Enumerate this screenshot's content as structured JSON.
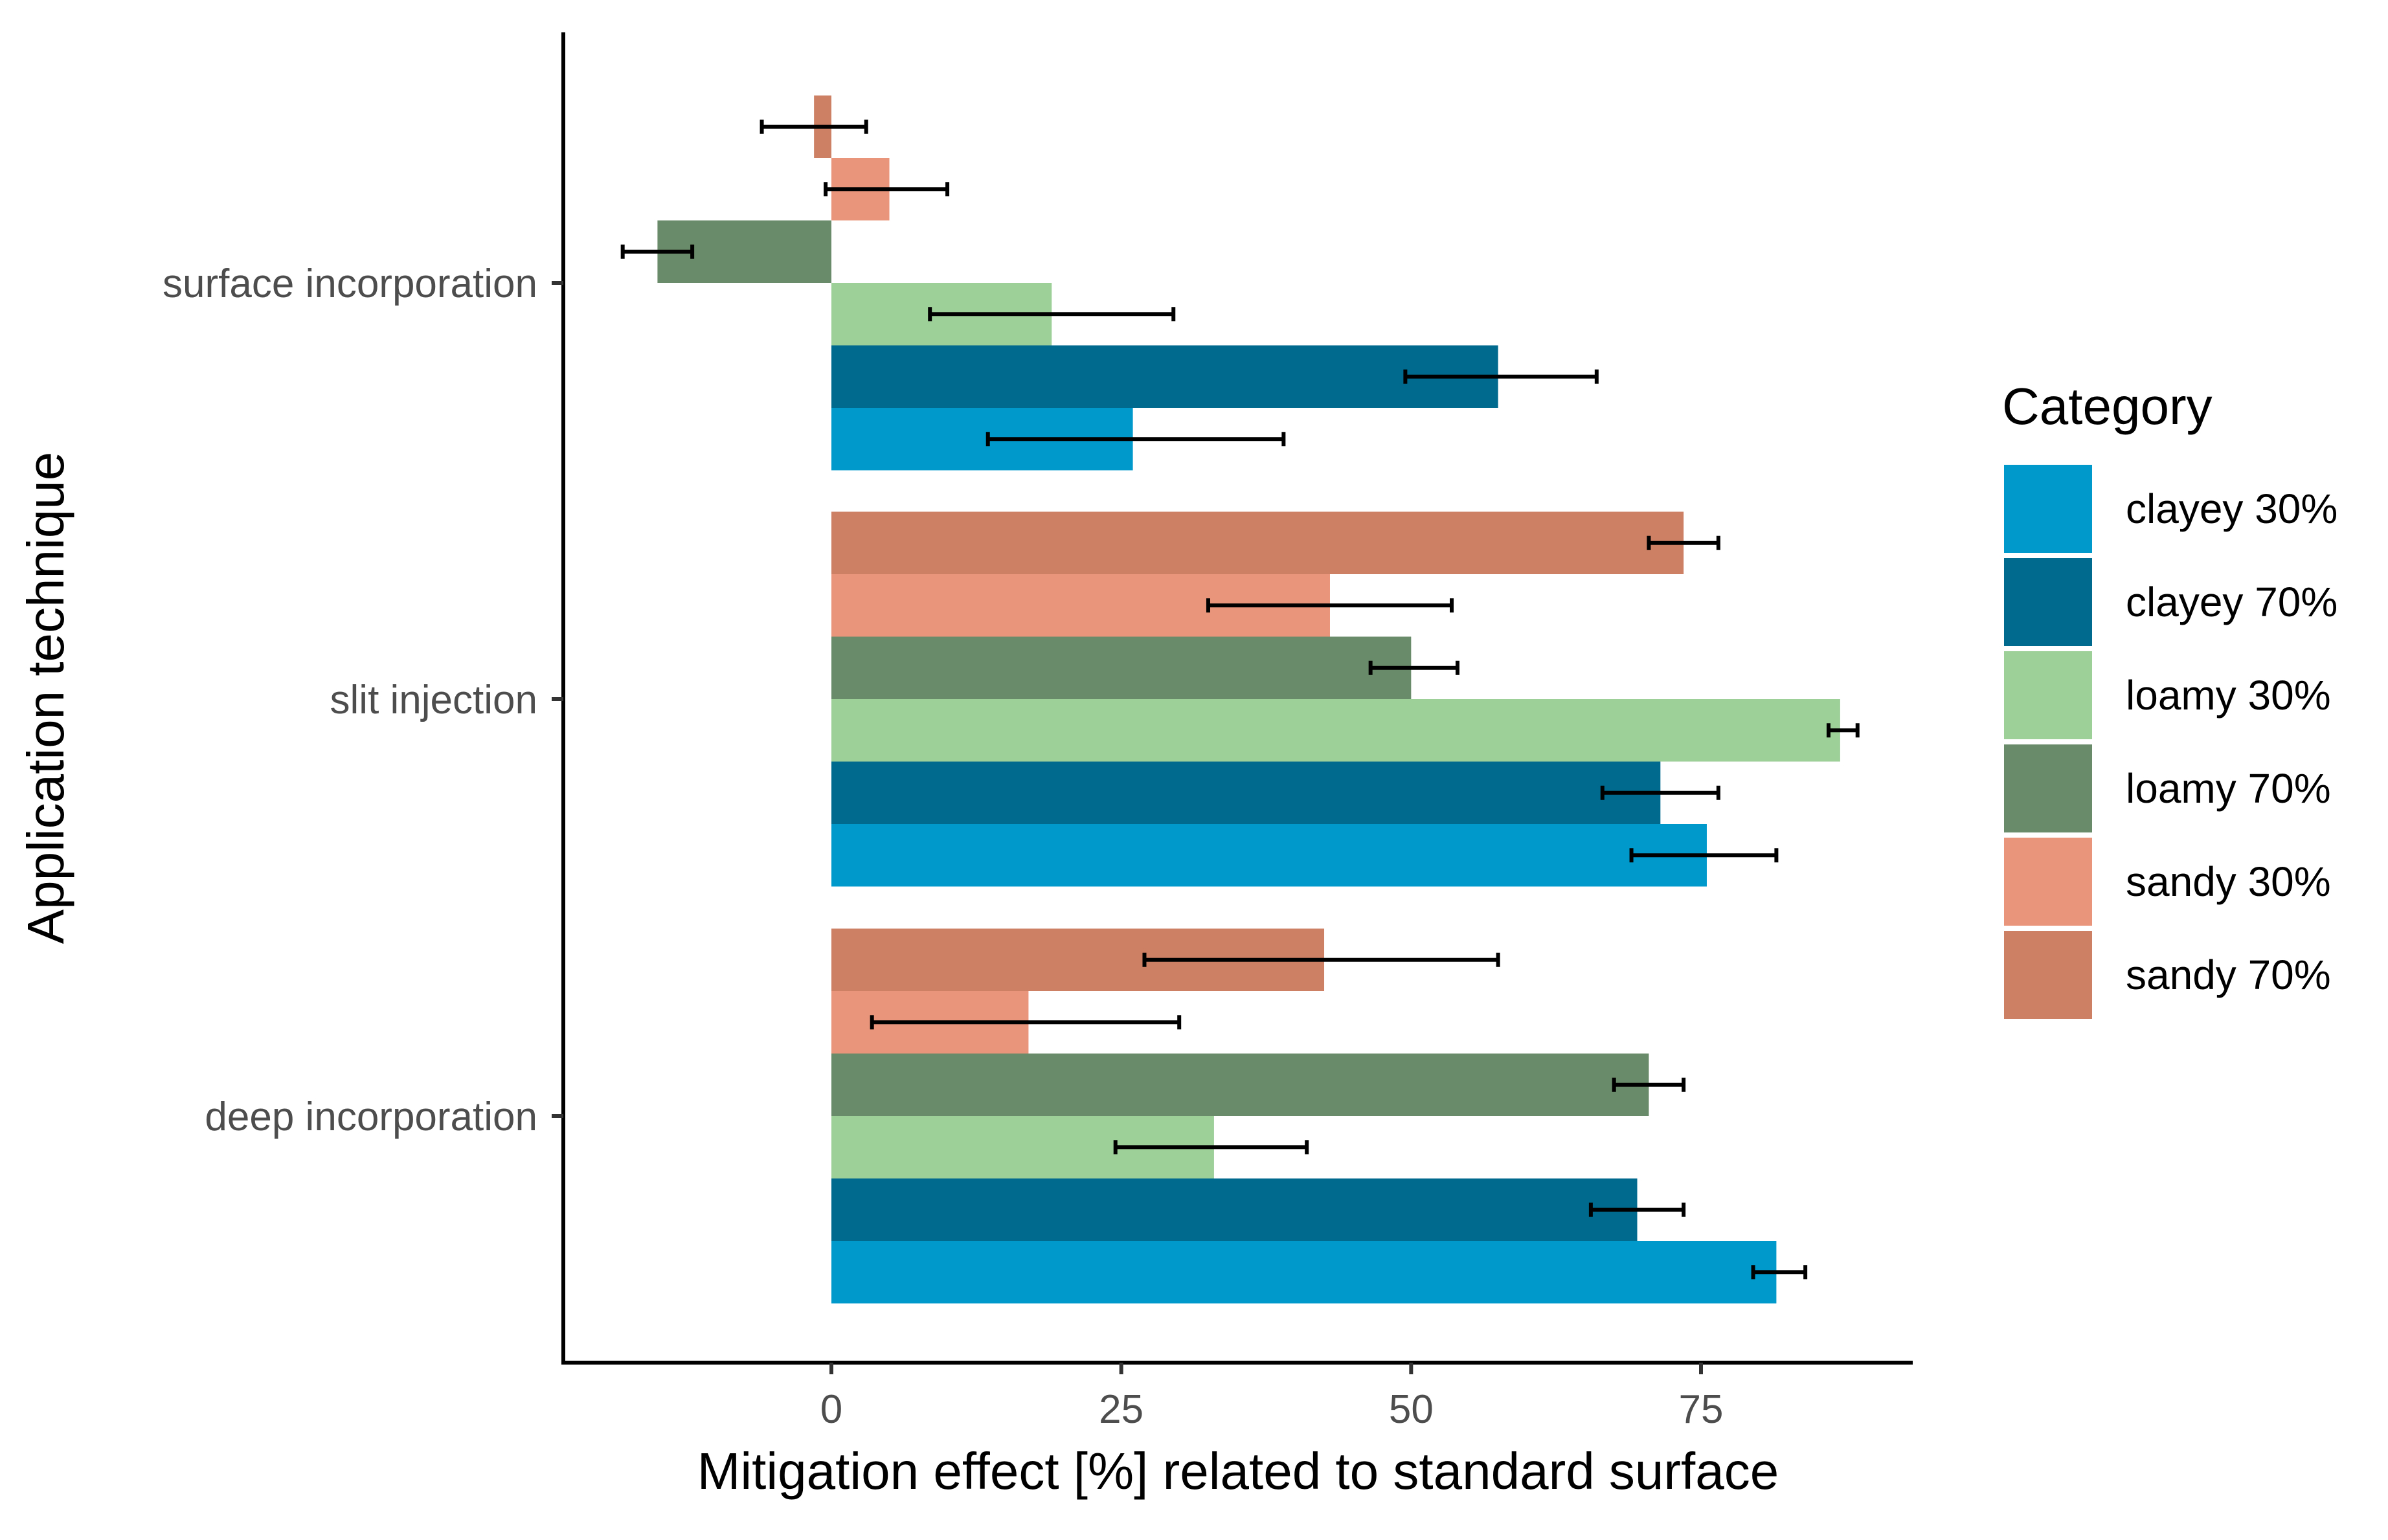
{
  "chart_data": {
    "type": "bar",
    "orientation": "horizontal",
    "title": "",
    "xlabel": "Mitigation effect [%] related to standard surface",
    "ylabel": "Application technique",
    "xlim": [
      -23,
      93
    ],
    "xticks": [
      0,
      25,
      50,
      75
    ],
    "grid": false,
    "legend_title": "Category",
    "legend_position": "right",
    "categories": [
      "surface incorporation",
      "slit injection",
      "deep incorporation"
    ],
    "series": [
      {
        "name": "clayey 30%",
        "color": "#0099cc",
        "values": [
          26,
          75.5,
          81.5
        ],
        "err_low": [
          13.5,
          69,
          79.5
        ],
        "err_high": [
          39,
          81.5,
          84
        ]
      },
      {
        "name": "clayey 70%",
        "color": "#006a8e",
        "values": [
          57.5,
          71.5,
          69.5
        ],
        "err_low": [
          49.5,
          66.5,
          65.5
        ],
        "err_high": [
          66,
          76.5,
          73.5
        ]
      },
      {
        "name": "loamy 30%",
        "color": "#9dcf99",
        "values": [
          19,
          87,
          33
        ],
        "err_low": [
          8.5,
          86,
          24.5
        ],
        "err_high": [
          29.5,
          88.5,
          41
        ]
      },
      {
        "name": "loamy 70%",
        "color": "#6a8b69",
        "values": [
          -15,
          50,
          70.5
        ],
        "err_low": [
          -18,
          46.5,
          67.5
        ],
        "err_high": [
          -12,
          54,
          73.5
        ]
      },
      {
        "name": "sandy 30%",
        "color": "#e9957b",
        "values": [
          5,
          43,
          17
        ],
        "err_low": [
          -0.5,
          32.5,
          3.5
        ],
        "err_high": [
          10,
          53.5,
          30
        ]
      },
      {
        "name": "sandy 70%",
        "color": "#cd8064",
        "values": [
          -1.5,
          73.5,
          42.5
        ],
        "err_low": [
          -6,
          70.5,
          27
        ],
        "err_high": [
          3,
          76.5,
          57.5
        ]
      }
    ]
  }
}
